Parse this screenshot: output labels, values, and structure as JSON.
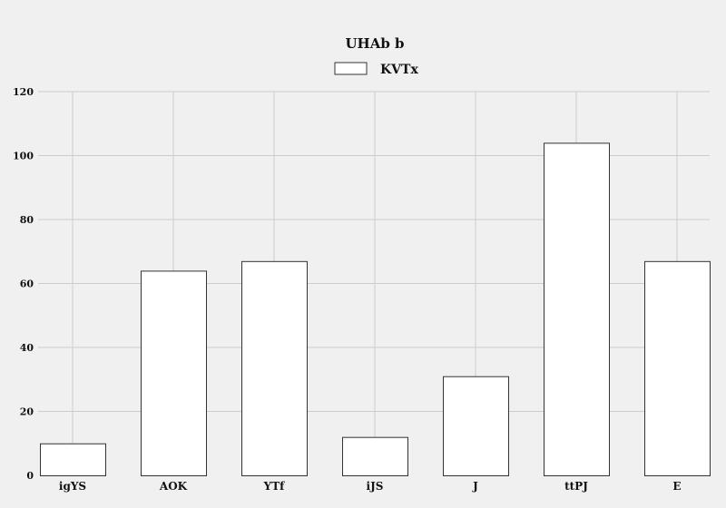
{
  "chart_data": {
    "type": "bar",
    "title": "UHAb b",
    "legend": {
      "placement": "top-center"
    },
    "series": [
      {
        "name": "KVTx",
        "values": [
          10,
          64,
          67,
          12,
          31,
          104,
          67
        ]
      }
    ],
    "categories": [
      "igYS",
      "AOK",
      "YTf",
      "iJS",
      "J",
      "ttPJ",
      "E"
    ],
    "ylim": [
      0,
      120
    ],
    "yticks": [
      0,
      20,
      40,
      60,
      80,
      100,
      120
    ],
    "grid": true,
    "colors": {
      "background": "#f0f0f0",
      "bar_fill": "#ffffff",
      "bar_stroke": "#333333",
      "grid": "#cccccc",
      "text": "#111111"
    }
  }
}
